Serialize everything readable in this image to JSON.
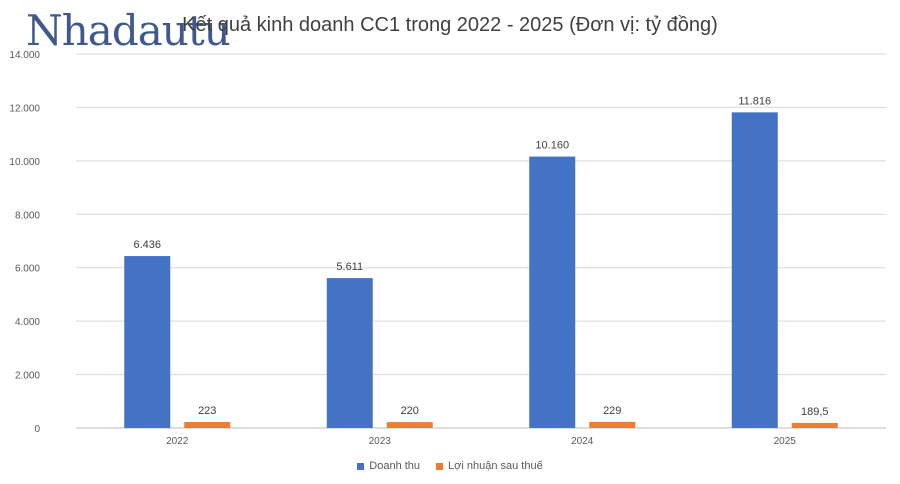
{
  "watermark": "Nhadautu",
  "chart_data": {
    "type": "bar",
    "title": "Kết quả kinh doanh CC1 trong 2022 - 2025 (Đơn vị: tỷ đồng)",
    "categories": [
      "2022",
      "2023",
      "2024",
      "2025"
    ],
    "series": [
      {
        "name": "Doanh thu",
        "color": "#4472C4",
        "values": [
          6436,
          5611,
          10160,
          11816
        ],
        "labels": [
          "6.436",
          "5.611",
          "10.160",
          "11.816"
        ]
      },
      {
        "name": "Lợi nhuận sau thuế",
        "color": "#ED7D31",
        "values": [
          223,
          220,
          229,
          189.5
        ],
        "labels": [
          "223",
          "220",
          "229",
          "189,5"
        ]
      }
    ],
    "ylim": [
      0,
      14000
    ],
    "yticks": [
      0,
      2000,
      4000,
      6000,
      8000,
      10000,
      12000,
      14000
    ],
    "ytick_labels": [
      "0",
      "2.000",
      "4.000",
      "6.000",
      "8.000",
      "10.000",
      "12.000",
      "14.000"
    ],
    "grid": true,
    "legend": "bottom"
  }
}
